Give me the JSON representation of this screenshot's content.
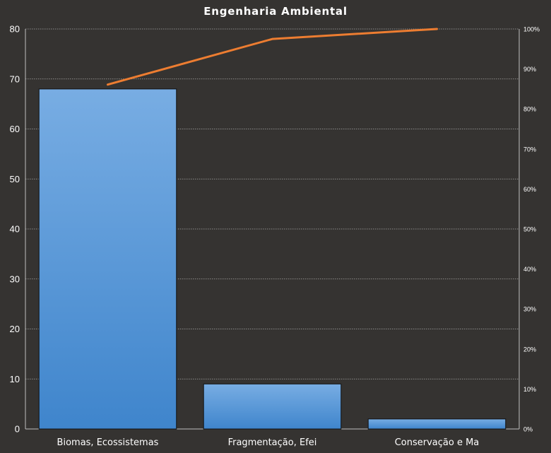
{
  "chart_data": {
    "type": "bar",
    "title": "Engenharia Ambiental",
    "categories": [
      "Biomas, Ecossistemas",
      "Fragmentação, Efei",
      "Conservação e Ma"
    ],
    "series": [
      {
        "type": "bar",
        "values": [
          68,
          9,
          2
        ]
      },
      {
        "type": "line",
        "axis": "right",
        "values": [
          86.1,
          97.5,
          100
        ]
      }
    ],
    "ylim": [
      0,
      80
    ],
    "yticks": [
      0,
      10,
      20,
      30,
      40,
      50,
      60,
      70,
      80
    ],
    "y2lim": [
      0,
      100
    ],
    "y2ticks": [
      "0%",
      "10%",
      "20%",
      "30%",
      "40%",
      "50%",
      "60%",
      "70%",
      "80%",
      "90%",
      "100%"
    ],
    "grid": "horizontal dotted",
    "legend": "none",
    "colors": {
      "background": "#353331",
      "bar": "#4a8fd8",
      "line": "#ed7d31",
      "grid": "#cfcfcf",
      "text": "#ffffff"
    }
  }
}
